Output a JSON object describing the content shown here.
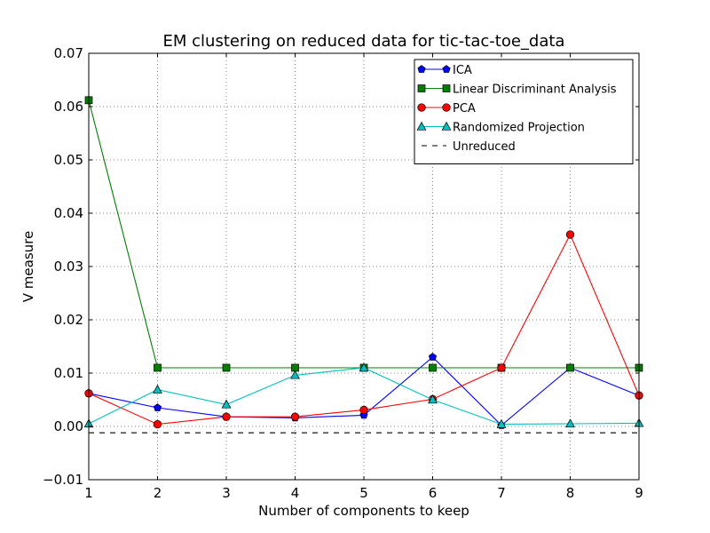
{
  "chart_data": {
    "type": "line",
    "title": "EM clustering on reduced data for tic-tac-toe_data",
    "xlabel": "Number of components to keep",
    "ylabel": "V measure",
    "x": [
      1,
      2,
      3,
      4,
      5,
      6,
      7,
      8,
      9
    ],
    "xlim": [
      1,
      9
    ],
    "ylim": [
      -0.01,
      0.07
    ],
    "xticks": [
      "1",
      "2",
      "3",
      "4",
      "5",
      "6",
      "7",
      "8",
      "9"
    ],
    "yticks": [
      -0.01,
      0.0,
      0.01,
      0.02,
      0.03,
      0.04,
      0.05,
      0.06,
      0.07
    ],
    "ytick_labels": [
      "−0.01",
      "0.00",
      "0.01",
      "0.02",
      "0.03",
      "0.04",
      "0.05",
      "0.06",
      "0.07"
    ],
    "grid": true,
    "legend_position": "top-right",
    "series": [
      {
        "name": "ICA",
        "color": "#0000ff",
        "marker": "pentagon",
        "line": "solid",
        "values": [
          0.0062,
          0.0035,
          0.0018,
          0.0016,
          0.0021,
          0.013,
          0.0002,
          0.011,
          0.0058
        ]
      },
      {
        "name": "Linear Discriminant Analysis",
        "color": "#008000",
        "marker": "square",
        "line": "solid",
        "values": [
          0.0612,
          0.011,
          0.011,
          0.011,
          0.011,
          0.011,
          0.011,
          0.011,
          0.011
        ]
      },
      {
        "name": "PCA",
        "color": "#ff0000",
        "marker": "circle",
        "line": "solid",
        "values": [
          0.0062,
          0.0004,
          0.0018,
          0.0018,
          0.0031,
          0.0051,
          0.011,
          0.036,
          0.0058
        ]
      },
      {
        "name": "Randomized Projection",
        "color": "#00bfbf",
        "marker": "triangle",
        "line": "solid",
        "values": [
          0.0005,
          0.0069,
          0.0041,
          0.0096,
          0.011,
          0.005,
          0.0004,
          0.0005,
          0.0006
        ]
      },
      {
        "name": "Unreduced",
        "color": "#000000",
        "marker": "none",
        "line": "dashed",
        "values": [
          -0.0012,
          -0.0012,
          -0.0012,
          -0.0012,
          -0.0012,
          -0.0012,
          -0.0012,
          -0.0012,
          -0.0012
        ]
      }
    ]
  }
}
